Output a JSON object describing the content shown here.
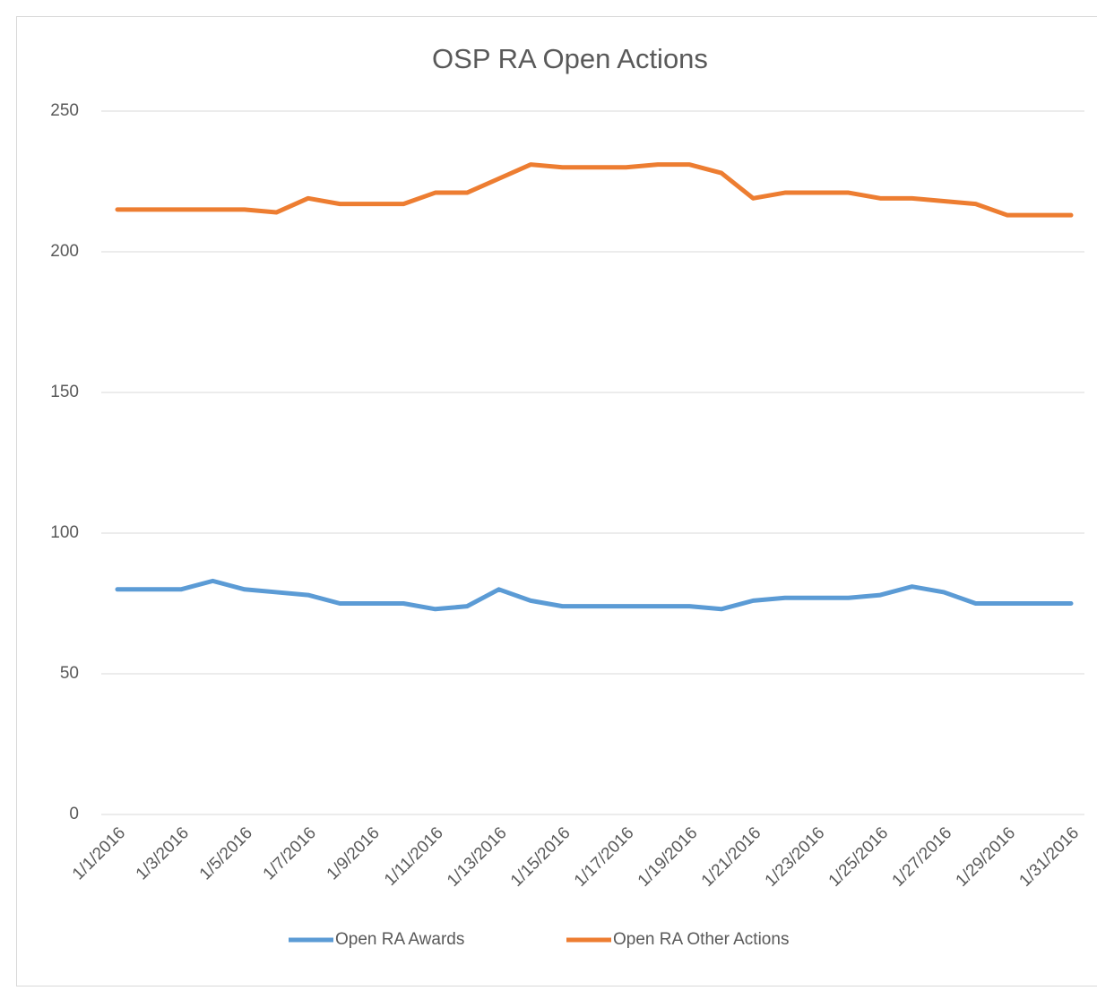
{
  "chart_data": {
    "type": "line",
    "title": "OSP RA Open Actions",
    "categories": [
      "1/1/2016",
      null,
      "1/3/2016",
      null,
      "1/5/2016",
      null,
      "1/7/2016",
      null,
      "1/9/2016",
      null,
      "1/11/2016",
      null,
      "1/13/2016",
      null,
      "1/15/2016",
      null,
      "1/17/2016",
      null,
      "1/19/2016",
      null,
      "1/21/2016",
      null,
      "1/23/2016",
      null,
      "1/25/2016",
      null,
      "1/27/2016",
      null,
      "1/29/2016",
      null,
      "1/31/2016"
    ],
    "series": [
      {
        "name": "Open RA Awards",
        "color": "#5b9bd5",
        "values": [
          80,
          80,
          80,
          83,
          80,
          79,
          78,
          75,
          75,
          75,
          73,
          74,
          80,
          76,
          74,
          74,
          74,
          74,
          74,
          73,
          76,
          77,
          77,
          77,
          78,
          81,
          79,
          75,
          75,
          75,
          75
        ]
      },
      {
        "name": "Open RA Other Actions",
        "color": "#ed7d31",
        "values": [
          215,
          215,
          215,
          215,
          215,
          214,
          219,
          217,
          217,
          217,
          221,
          221,
          226,
          231,
          230,
          230,
          230,
          231,
          231,
          228,
          219,
          221,
          221,
          221,
          219,
          219,
          218,
          217,
          213,
          213,
          213
        ]
      }
    ],
    "ylim": [
      0,
      250
    ],
    "yticks": [
      0,
      50,
      100,
      150,
      200,
      250
    ],
    "grid": true,
    "legend": "bottom"
  }
}
